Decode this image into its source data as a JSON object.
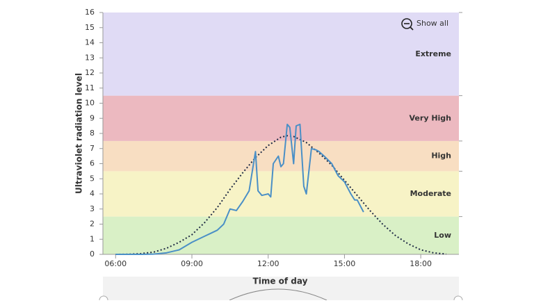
{
  "chart_data": {
    "type": "line",
    "y_label": "Ultraviolet radiation level",
    "x_label": "Time of day",
    "button": "Show all",
    "xlim": [
      5.5,
      19.5
    ],
    "xticks": [
      {
        "value": 6,
        "label": "06:00"
      },
      {
        "value": 9,
        "label": "09:00"
      },
      {
        "value": 12,
        "label": "12:00"
      },
      {
        "value": 15,
        "label": "15:00"
      },
      {
        "value": 18,
        "label": "18:00"
      }
    ],
    "ylim": [
      0,
      16
    ],
    "yticks": [
      0,
      1,
      2,
      3,
      4,
      5,
      6,
      7,
      8,
      9,
      10,
      11,
      12,
      13,
      14,
      15,
      16
    ],
    "bands": [
      {
        "name": "Low",
        "from": 0,
        "to": 2.5,
        "color": "#d9f0c6"
      },
      {
        "name": "Moderate",
        "from": 2.5,
        "to": 5.5,
        "color": "#f7f3c6"
      },
      {
        "name": "High",
        "from": 5.5,
        "to": 7.5,
        "color": "#f8dec2"
      },
      {
        "name": "Very High",
        "from": 7.5,
        "to": 10.5,
        "color": "#ecb9c0"
      },
      {
        "name": "Extreme",
        "from": 10.5,
        "to": 16,
        "color": "#e0dbf5"
      }
    ],
    "series": [
      {
        "color": "#1f2a44",
        "dash": true,
        "x": [
          6,
          6.5,
          7,
          7.5,
          8,
          8.5,
          9,
          9.5,
          10,
          10.5,
          11,
          11.5,
          12,
          12.5,
          12.75,
          13,
          13.5,
          14,
          14.5,
          15,
          15.5,
          16,
          16.5,
          17,
          17.5,
          18,
          18.5,
          19
        ],
        "values": [
          0,
          0.01,
          0.05,
          0.15,
          0.4,
          0.8,
          1.3,
          2.1,
          3.1,
          4.3,
          5.4,
          6.4,
          7.2,
          7.75,
          7.85,
          7.8,
          7.4,
          6.7,
          5.9,
          4.9,
          3.9,
          2.9,
          2.0,
          1.25,
          0.7,
          0.3,
          0.1,
          0.02
        ]
      },
      {
        "color": "#4a8fc6",
        "dash": false,
        "x": [
          6,
          7,
          7.5,
          8,
          8.5,
          9,
          9.25,
          9.5,
          9.75,
          10,
          10.25,
          10.5,
          10.75,
          11,
          11.25,
          11.5,
          11.6,
          11.75,
          12,
          12.1,
          12.2,
          12.4,
          12.5,
          12.6,
          12.75,
          12.85,
          13,
          13.1,
          13.25,
          13.4,
          13.5,
          13.7,
          13.9,
          14,
          14.2,
          14.5,
          14.75,
          15,
          15.25,
          15.4,
          15.5,
          15.75
        ],
        "values": [
          0,
          0,
          0.02,
          0.1,
          0.3,
          0.8,
          1.0,
          1.2,
          1.4,
          1.6,
          2.0,
          3.0,
          2.9,
          3.5,
          4.2,
          6.8,
          4.2,
          3.9,
          4.0,
          3.8,
          6.0,
          6.5,
          5.8,
          6.0,
          8.6,
          8.4,
          6.0,
          8.5,
          8.6,
          4.5,
          4.0,
          7.0,
          6.9,
          6.8,
          6.5,
          6.0,
          5.2,
          4.8,
          4.0,
          3.6,
          3.6,
          2.8
        ]
      }
    ]
  }
}
